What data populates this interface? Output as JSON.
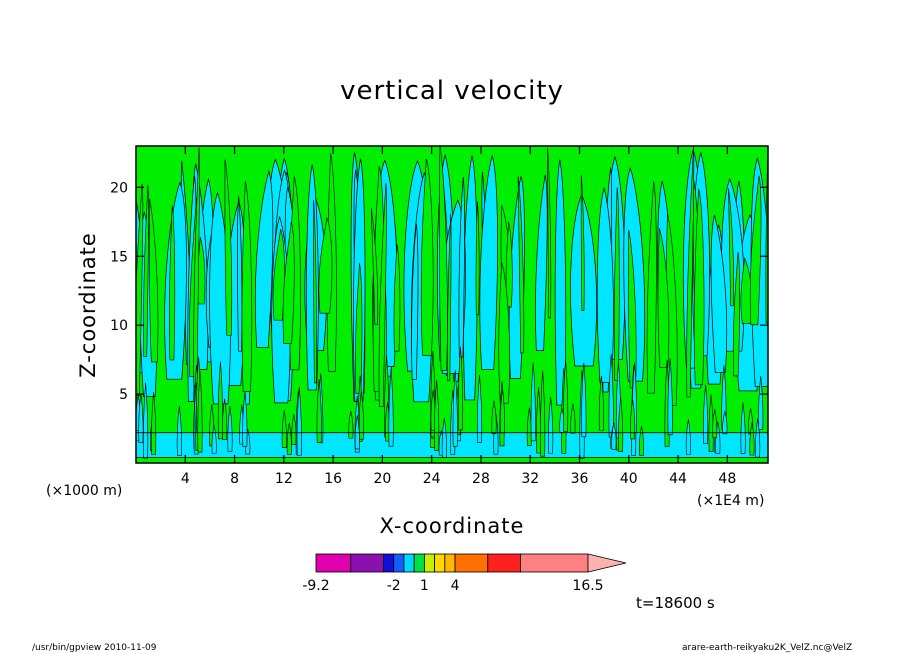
{
  "chart_data": {
    "type": "contour",
    "title": "vertical velocity",
    "xlabel": "X-coordinate",
    "ylabel": "Z-coordinate",
    "x_unit_left": "(×1000 m)",
    "x_unit_right": "(×1E4 m)",
    "xlim": [
      0,
      51.3
    ],
    "ylim": [
      0,
      23
    ],
    "x_ticks": [
      4,
      8,
      12,
      16,
      20,
      24,
      28,
      32,
      36,
      40,
      44,
      48
    ],
    "y_ticks": [
      5,
      10,
      15,
      20
    ],
    "fill_colors": {
      "positive": "#00ee00",
      "negative": "#00e6ff",
      "contour_line": "#000000"
    },
    "colorbar": {
      "levels": [
        -9.2,
        -6.5,
        -4,
        -2,
        -1,
        0,
        1,
        2,
        3,
        4,
        6.5,
        9,
        16.5
      ],
      "colors": [
        "#e000b0",
        "#8c10b0",
        "#1010d8",
        "#1060ff",
        "#00d8ff",
        "#00e040",
        "#c8f000",
        "#ffd800",
        "#ffb800",
        "#ff7000",
        "#ff2020",
        "#ff8080",
        "#ffb0b0"
      ],
      "labels": [
        "-9.2",
        "-2",
        "1",
        "4",
        "16.5"
      ],
      "label_positions": [
        -9.2,
        -2,
        1,
        4,
        16.5
      ]
    },
    "time_label": "t=18600 s"
  },
  "footer": {
    "left": "/usr/bin/gpview   2010-11-09",
    "right": "arare-earth-reikyaku2K_VelZ.nc@VelZ"
  }
}
